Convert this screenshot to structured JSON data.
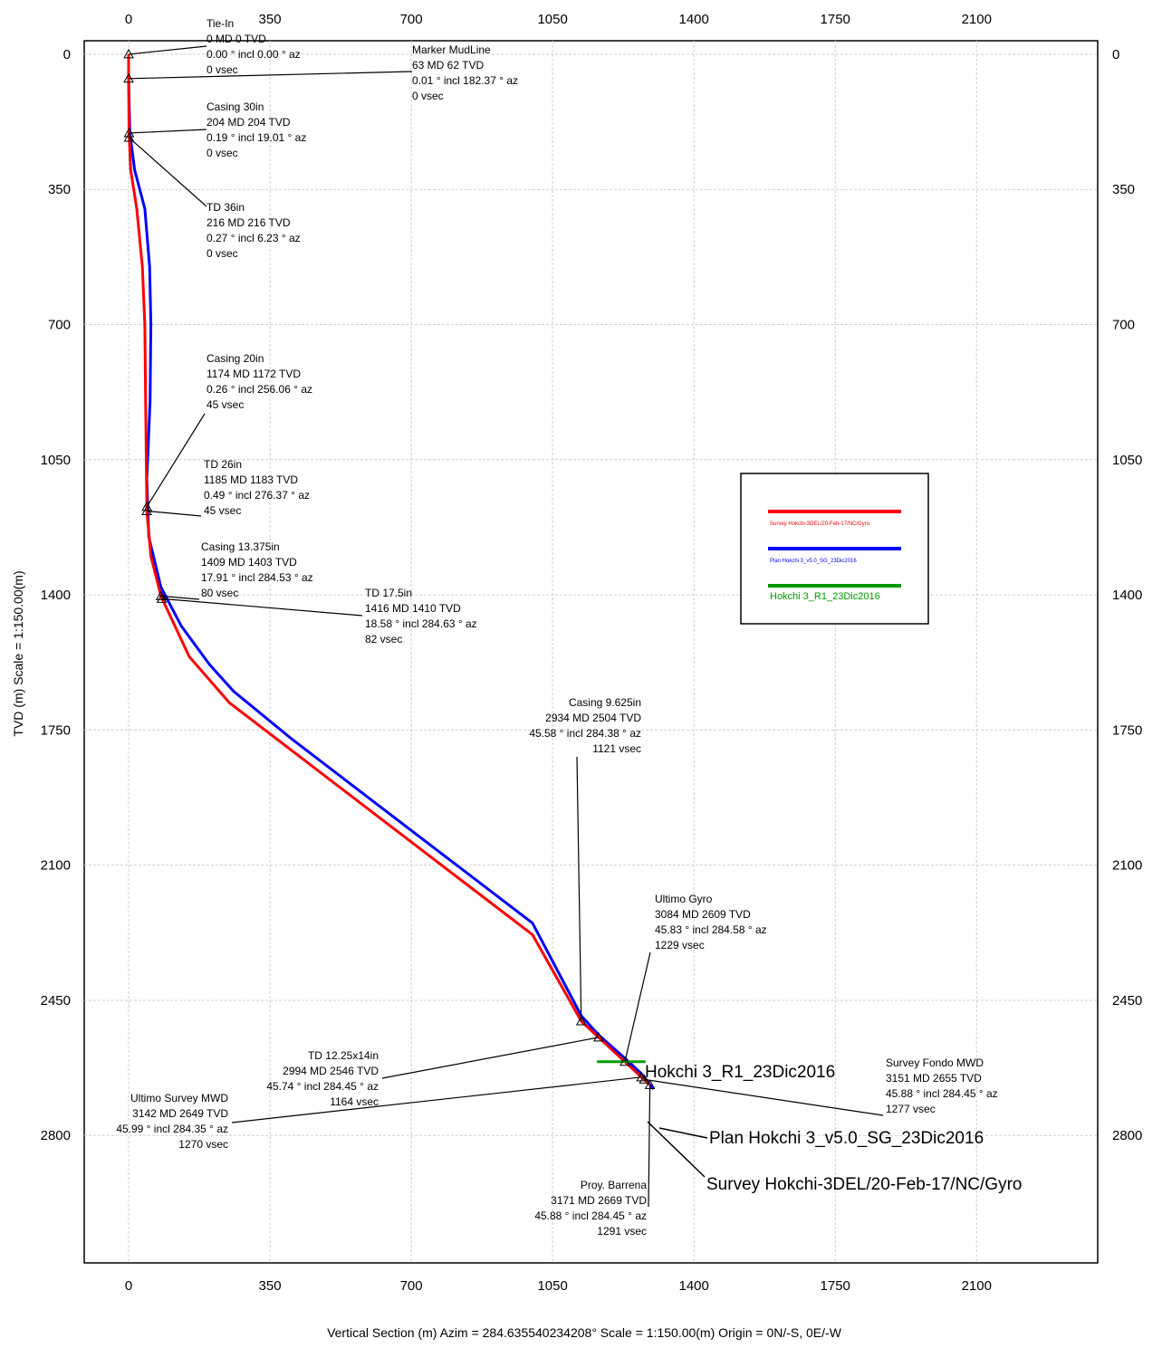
{
  "chart_data": {
    "type": "line",
    "x_axis": {
      "ticks": [
        0,
        350,
        700,
        1050,
        1400,
        1750,
        2100
      ],
      "range": [
        -110,
        2400
      ],
      "label": "Vertical Section (m) Azim = 284.635540234208° Scale = 1:150.00(m) Origin = 0N/-S, 0E/-W",
      "grid": true
    },
    "y_axis": {
      "ticks": [
        0,
        350,
        700,
        1050,
        1400,
        1750,
        2100,
        2450,
        2800
      ],
      "range": [
        -35,
        3130
      ],
      "reversed": true,
      "label": "TVD (m) Scale = 1:150.00(m)",
      "grid": true
    },
    "legend": {
      "position": "right",
      "entries": [
        {
          "name": "Survey Hokchi-3DEL/20-Feb-17/NC/Gyro",
          "color": "#ff0000"
        },
        {
          "name": "Plan Hokchi 3_v5.0_SG_23Dic2016",
          "color": "#0000ff"
        },
        {
          "name": "Hokchi 3_R1_23Dic2016",
          "color": "#009900"
        }
      ]
    },
    "series": [
      {
        "name": "Survey Hokchi-3DEL/20-Feb-17/NC/Gyro",
        "color": "#ff0000",
        "x": [
          0,
          0,
          1,
          5,
          20,
          34,
          40,
          42,
          45,
          45,
          55,
          80,
          150,
          250,
          400,
          600,
          800,
          1000,
          1121,
          1164,
          1229,
          1270,
          1277,
          1291
        ],
        "y": [
          0,
          63,
          204,
          300,
          400,
          550,
          700,
          900,
          1172,
          1183,
          1300,
          1403,
          1560,
          1680,
          1800,
          1960,
          2120,
          2280,
          2504,
          2546,
          2609,
          2649,
          2655,
          2669
        ]
      },
      {
        "name": "Plan Hokchi 3_v5.0_SG_23Dic2016",
        "color": "#0000ff",
        "x": [
          0,
          0,
          3,
          15,
          40,
          52,
          55,
          53,
          45,
          50,
          80,
          130,
          200,
          260,
          400,
          600,
          800,
          1000,
          1121,
          1164,
          1229,
          1270,
          1300
        ],
        "y": [
          0,
          63,
          204,
          300,
          400,
          550,
          700,
          900,
          1100,
          1250,
          1380,
          1480,
          1580,
          1650,
          1770,
          1930,
          2090,
          2250,
          2490,
          2540,
          2600,
          2640,
          2680
        ]
      }
    ],
    "target": {
      "name": "Hokchi 3_R1_23Dic2016",
      "x_min": 1160,
      "x_max": 1280,
      "y": 2609,
      "color": "#009900"
    },
    "annotations": [
      {
        "id": "tie-in",
        "lines": [
          "Tie-In",
          "0 MD 0 TVD",
          "0.00 ° incl 0.00 ° az",
          "0 vsec"
        ],
        "point": [
          0,
          0
        ],
        "align": "start"
      },
      {
        "id": "marker-mudline",
        "lines": [
          "Marker MudLine",
          "63 MD 62 TVD",
          "0.01 ° incl 182.37 ° az",
          "0 vsec"
        ],
        "point": [
          0,
          63
        ],
        "align": "start"
      },
      {
        "id": "casing-30in",
        "lines": [
          "Casing 30in",
          "204 MD 204 TVD",
          "0.19 ° incl 19.01 ° az",
          "0 vsec"
        ],
        "point": [
          1,
          204
        ],
        "align": "start"
      },
      {
        "id": "td-36in",
        "lines": [
          "TD 36in",
          "216 MD 216 TVD",
          "0.27 ° incl 6.23 ° az",
          "0 vsec"
        ],
        "point": [
          1,
          216
        ],
        "align": "start"
      },
      {
        "id": "casing-20in",
        "lines": [
          "Casing 20in",
          "1174 MD 1172 TVD",
          "0.26 ° incl 256.06 ° az",
          "45 vsec"
        ],
        "point": [
          45,
          1172
        ],
        "align": "start"
      },
      {
        "id": "td-26in",
        "lines": [
          "TD 26in",
          "1185 MD 1183 TVD",
          "0.49 ° incl 276.37 ° az",
          "45 vsec"
        ],
        "point": [
          45,
          1183
        ],
        "align": "start"
      },
      {
        "id": "casing-13375in",
        "lines": [
          "Casing 13.375in",
          "1409 MD 1403 TVD",
          "17.91 ° incl 284.53 ° az",
          "80 vsec"
        ],
        "point": [
          80,
          1403
        ],
        "align": "start"
      },
      {
        "id": "td-175in",
        "lines": [
          "TD 17.5in",
          "1416 MD 1410 TVD",
          "18.58 ° incl 284.63 ° az",
          "82 vsec"
        ],
        "point": [
          82,
          1410
        ],
        "align": "start"
      },
      {
        "id": "casing-9625in",
        "lines": [
          "Casing 9.625in",
          "2934 MD 2504 TVD",
          "45.58 ° incl 284.38 ° az",
          "1121 vsec"
        ],
        "point": [
          1121,
          2504
        ],
        "align": "end"
      },
      {
        "id": "ultimo-gyro",
        "lines": [
          "Ultimo Gyro",
          "3084 MD 2609 TVD",
          "45.83 ° incl 284.58 ° az",
          "1229 vsec"
        ],
        "point": [
          1229,
          2609
        ],
        "align": "start"
      },
      {
        "id": "td-1225x14in",
        "lines": [
          "TD 12.25x14in",
          "2994 MD 2546 TVD",
          "45.74 ° incl 284.45 ° az",
          "1164 vsec"
        ],
        "point": [
          1164,
          2546
        ],
        "align": "end"
      },
      {
        "id": "survey-fondo-mwd",
        "lines": [
          "Survey Fondo MWD",
          "3151 MD 2655 TVD",
          "45.88 ° incl 284.45 ° az",
          "1277 vsec"
        ],
        "point": [
          1277,
          2655
        ],
        "align": "start"
      },
      {
        "id": "ultimo-survey-mwd",
        "lines": [
          "Ultimo Survey MWD",
          "3142 MD 2649 TVD",
          "45.99 ° incl 284.35 ° az",
          "1270 vsec"
        ],
        "point": [
          1270,
          2649
        ],
        "align": "end"
      },
      {
        "id": "proy-barrena",
        "lines": [
          "Proy. Barrena",
          "3171 MD 2669 TVD",
          "45.88 ° incl 284.45 ° az",
          "1291 vsec"
        ],
        "point": [
          1291,
          2669
        ],
        "align": "end"
      }
    ],
    "well_labels": [
      {
        "text": "Hokchi 3_R1_23Dic2016",
        "point": [
          1229,
          2609
        ]
      },
      {
        "text": "Plan Hokchi 3_v5.0_SG_23Dic2016",
        "point": [
          1300,
          2680
        ]
      },
      {
        "text": "Survey Hokchi-3DEL/20-Feb-17/NC/Gyro",
        "point": [
          1291,
          2669
        ]
      }
    ]
  }
}
